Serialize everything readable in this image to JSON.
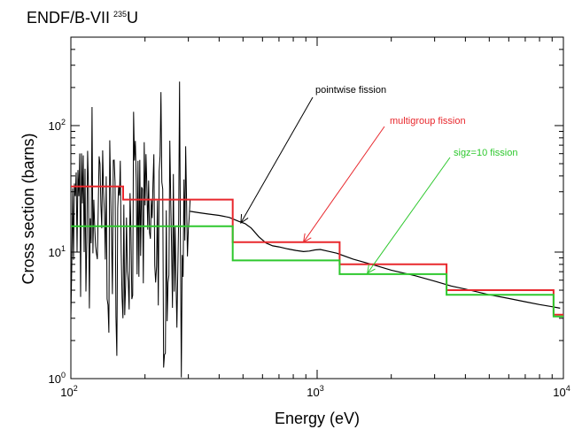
{
  "chart_data": {
    "type": "line",
    "title": "ENDF/B-VII",
    "title_superscript": "235",
    "title_suffix": "U",
    "xlabel": "Energy (eV)",
    "ylabel": "Cross section (barns)",
    "xscale": "log",
    "yscale": "log",
    "xlim": [
      100,
      10000
    ],
    "ylim": [
      1,
      500
    ],
    "grid": false,
    "x_ticks": [
      {
        "base": "10",
        "exp": "2",
        "value": 100
      },
      {
        "base": "10",
        "exp": "3",
        "value": 1000
      },
      {
        "base": "10",
        "exp": "4",
        "value": 10000
      }
    ],
    "y_ticks": [
      {
        "base": "10",
        "exp": "0",
        "value": 1
      },
      {
        "base": "10",
        "exp": "1",
        "value": 10
      },
      {
        "base": "10",
        "exp": "2",
        "value": 100
      }
    ],
    "series": [
      {
        "name": "pointwise fission",
        "color": "#000000",
        "style": "line",
        "resonance_region": {
          "x_start": 100,
          "x_end": 305,
          "approx_lines": 135,
          "min": 1.0,
          "max": 230,
          "seed": 7
        },
        "x": [
          305,
          330,
          360,
          400,
          440,
          480,
          510,
          540,
          580,
          620,
          660,
          700,
          760,
          820,
          880,
          930,
          980,
          1030,
          1100,
          1200,
          1400,
          1700,
          2000,
          2500,
          3000,
          3500,
          4000,
          5000,
          6000,
          7000,
          8000,
          9000,
          9700
        ],
        "y": [
          21,
          20.5,
          20,
          19.5,
          18.8,
          17.5,
          16.8,
          15.5,
          13.2,
          11.8,
          11.2,
          11.0,
          10.6,
          10.3,
          10.1,
          10.2,
          10.4,
          10.5,
          10.2,
          9.8,
          8.8,
          7.9,
          7.2,
          6.5,
          5.9,
          5.4,
          5.1,
          4.6,
          4.3,
          4.05,
          3.85,
          3.7,
          3.6
        ]
      },
      {
        "name": "multigroup fission",
        "color": "#e8282d",
        "style": "step",
        "edges": [
          100,
          163,
          454,
          1234,
          3355,
          9119,
          10000
        ],
        "values": [
          33,
          26,
          12,
          8,
          5,
          3.2
        ]
      },
      {
        "name": "sigz=10 fission",
        "color": "#2ec82e",
        "style": "step",
        "edges": [
          100,
          454,
          1234,
          3355,
          9119,
          10000
        ],
        "values": [
          16,
          8.6,
          6.7,
          4.6,
          3.1
        ]
      }
    ],
    "annotations": [
      {
        "text": "pointwise fission",
        "color": "#000000",
        "arrow_to": [
          490,
          17
        ]
      },
      {
        "text": "multigroup fission",
        "color": "#e8282d",
        "arrow_to": [
          880,
          12
        ]
      },
      {
        "text": "sigz=10 fission",
        "color": "#2ec82e",
        "arrow_to": [
          1600,
          6.8
        ]
      }
    ]
  }
}
